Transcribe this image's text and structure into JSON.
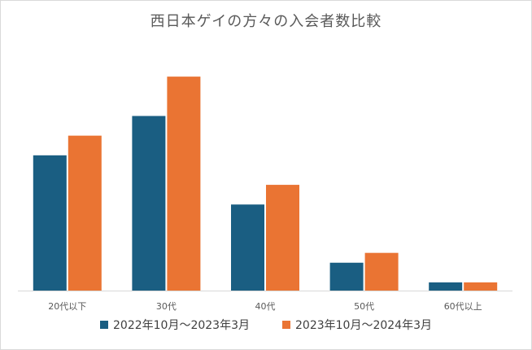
{
  "chart_data": {
    "type": "bar",
    "title": "西日本ゲイの方々の入会者数比較",
    "categories": [
      "20代以下",
      "30代",
      "40代",
      "50代",
      "60代以上"
    ],
    "series": [
      {
        "name": "2022年10月～2023年3月",
        "color": "#1a5e82",
        "values": [
          165,
          213,
          105,
          34,
          10
        ]
      },
      {
        "name": "2023年10月～2024年3月",
        "color": "#ea7433",
        "values": [
          189,
          261,
          129,
          46,
          10
        ]
      }
    ],
    "ylim": [
      0,
      280
    ],
    "grid": false,
    "legend_position": "bottom"
  }
}
